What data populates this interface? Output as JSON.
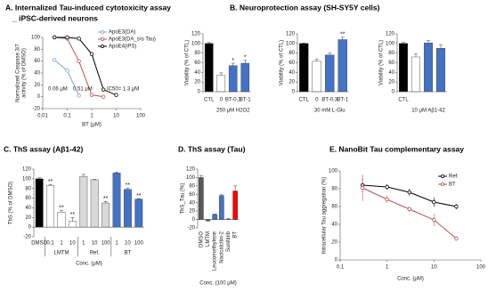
{
  "chart_data": [
    {
      "type": "line",
      "title": "A. Internalized Tau-induced cytotoxicity assay",
      "subtitle": "_ iPSC-derived neurons",
      "ylabel": [
        "Normalized Caspase 3/7",
        "activity (% of DMSO)"
      ],
      "xlabel": "BT (μM)",
      "x_scale": "log",
      "xlim": [
        0.01,
        100
      ],
      "xticks": [
        0.01,
        0.1,
        1,
        10,
        100
      ],
      "ylim": [
        -20,
        100
      ],
      "yticks": [
        -20,
        0,
        20,
        40,
        60,
        80,
        100
      ],
      "legend": "upper right",
      "series": [
        {
          "name": "ApoE3(DA)",
          "color": "#7f9fd0",
          "x": [
            0.03,
            0.1,
            0.3
          ],
          "values": [
            62,
            44,
            2
          ]
        },
        {
          "name": "ApoE3(DA_s/o Tau)",
          "color": "#c0504d",
          "x": [
            0.03,
            0.1,
            0.3,
            1,
            3
          ],
          "values": [
            100,
            98,
            60,
            3,
            0
          ]
        },
        {
          "name": "ApoE4(iPS)",
          "color": "#000000",
          "x": [
            0.03,
            0.1,
            0.3,
            1,
            3,
            10
          ],
          "values": [
            100,
            100,
            98,
            72,
            12,
            3
          ]
        }
      ],
      "annotations": [
        "0.06 μM",
        "0.51 μM",
        "IC50= 1.3 μM"
      ]
    },
    {
      "type": "bar",
      "title": "B. Neuroprotection assay (SH-SY5Y cells)",
      "ylabel": "Viability (% of CTL)",
      "ylim": [
        0,
        120
      ],
      "yticks": [
        0,
        20,
        40,
        60,
        80,
        100,
        120
      ],
      "categories": [
        "CTL",
        "0",
        "BT-0.3",
        "BT-1"
      ],
      "values": [
        100,
        34,
        54,
        59
      ],
      "errors": [
        2,
        5,
        5,
        6
      ],
      "colors": [
        "#000000",
        "#ffffff",
        "#4472c4",
        "#4472c4"
      ],
      "stars": [
        null,
        null,
        "*",
        "*"
      ],
      "group_label": "250 μM H2O2"
    },
    {
      "type": "bar",
      "ylabel": "Viability (% of CTL)",
      "ylim": [
        0,
        120
      ],
      "yticks": [
        0,
        20,
        40,
        60,
        80,
        100,
        120
      ],
      "categories": [
        "CTL",
        "0",
        "BT-0.3",
        "BT-1"
      ],
      "values": [
        100,
        63,
        76,
        108
      ],
      "errors": [
        1,
        4,
        4,
        5
      ],
      "colors": [
        "#000000",
        "#ffffff",
        "#4472c4",
        "#4472c4"
      ],
      "stars": [
        null,
        null,
        null,
        "**"
      ],
      "group_label": "30 mM L-Glu"
    },
    {
      "type": "bar",
      "ylabel": "Viability (% of CTL)",
      "ylim": [
        0,
        120
      ],
      "yticks": [
        0,
        20,
        40,
        60,
        80,
        100,
        120
      ],
      "categories": [
        "CTL",
        null,
        null,
        null
      ],
      "values": [
        100,
        72,
        101,
        90
      ],
      "errors": [
        2,
        6,
        5,
        7
      ],
      "colors": [
        "#000000",
        "#ffffff",
        "#4472c4",
        "#4472c4"
      ],
      "group_label": "10 μM Aβ1-42"
    },
    {
      "type": "bar",
      "title": "C. ThS assay (Aβ1-42)",
      "ylabel": "ThS (% of DMSO)",
      "xlabel": "Conc. (μM)",
      "ylim": [
        -20,
        120
      ],
      "yticks": [
        -20,
        0,
        20,
        40,
        60,
        80,
        100,
        120
      ],
      "categories": [
        "DMSO",
        "0.1",
        "1",
        "10",
        "1",
        "10",
        "100",
        "1",
        "10",
        "100"
      ],
      "values": [
        100,
        86,
        31,
        12,
        105,
        98,
        50,
        112,
        78,
        58
      ],
      "errors": [
        2,
        2,
        3,
        8,
        4,
        1,
        3,
        2,
        3,
        1
      ],
      "colors": [
        "#000000",
        "#ffffff",
        "#ffffff",
        "#ffffff",
        "#d9d9d9",
        "#d9d9d9",
        "#d9d9d9",
        "#4472c4",
        "#4472c4",
        "#4472c4"
      ],
      "stars": [
        null,
        "**",
        "**",
        "**",
        null,
        null,
        "**",
        null,
        "**",
        "**"
      ],
      "groups": [
        "LMTM",
        "Ref.",
        "BT"
      ]
    },
    {
      "type": "bar",
      "title": "D. ThS assay (Tau)",
      "ylabel": "ThS_Tau (%)",
      "xlabel": "Conc. (100 μM)",
      "ylim": [
        -20,
        120
      ],
      "yticks": [
        -20,
        0,
        20,
        40,
        60,
        80,
        100,
        120
      ],
      "categories": [
        "DMSO",
        "LMTM",
        "Leucomethylene",
        "Nacicalcitin-2",
        "Sunitinib",
        "BT"
      ],
      "values": [
        100,
        -3,
        12,
        57,
        1,
        68
      ],
      "errors": [
        5,
        1,
        1,
        2,
        1,
        12
      ],
      "colors": [
        "#595959",
        "#4472c4",
        "#4472c4",
        "#4472c4",
        "#4472c4",
        "#ff0000"
      ]
    },
    {
      "type": "line",
      "title": "E. NanoBit Tau complementary assay",
      "ylabel": "Intracellular Tau aggregation (%)",
      "xlabel": "Conc. (μM)",
      "x_scale": "log",
      "xlim": [
        0.1,
        100
      ],
      "xticks": [
        0.1,
        1,
        10,
        100
      ],
      "ylim": [
        0,
        100
      ],
      "yticks": [
        0,
        20,
        40,
        60,
        80,
        100
      ],
      "legend": "upper right",
      "series": [
        {
          "name": "Ref.",
          "color": "#000000",
          "x": [
            0.3,
            1,
            3,
            10,
            30
          ],
          "values": [
            84,
            82,
            76,
            65,
            60
          ],
          "errors": [
            8,
            3,
            4,
            5,
            3
          ]
        },
        {
          "name": "BT",
          "color": "#b5564f",
          "x": [
            0.3,
            1,
            3,
            10,
            30
          ],
          "values": [
            81,
            68,
            57,
            45,
            24
          ],
          "errors": [
            15,
            4,
            3,
            7,
            2
          ]
        }
      ]
    }
  ]
}
